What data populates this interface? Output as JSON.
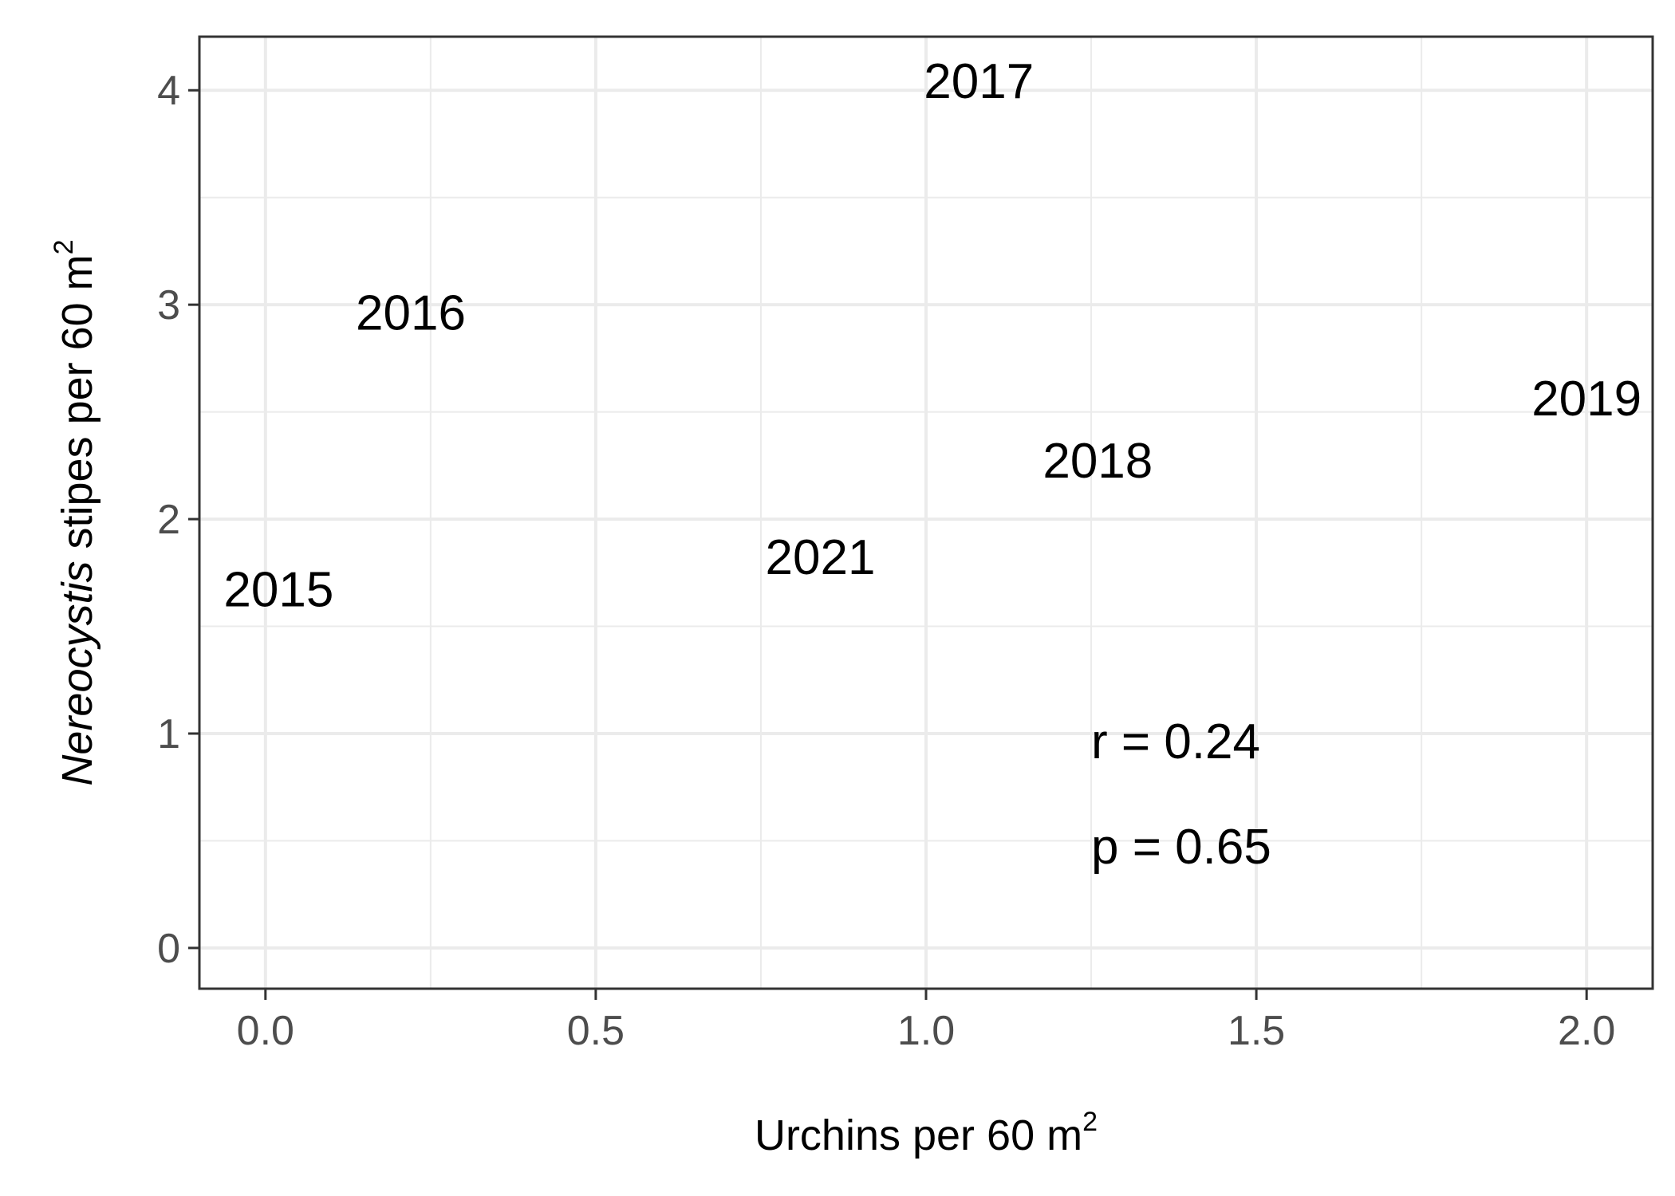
{
  "chart_data": {
    "type": "scatter",
    "xlabel": {
      "main": "Urchins per 60 m",
      "sup": "2"
    },
    "ylabel": {
      "italic": "Nereocystis",
      "main": " stipes per 60 m",
      "sup": "2"
    },
    "xlim": [
      -0.1,
      2.1
    ],
    "ylim": [
      -0.19,
      4.25
    ],
    "xticks": [
      0.0,
      0.5,
      1.0,
      1.5,
      2.0
    ],
    "xtick_labels": [
      "0.0",
      "0.5",
      "1.0",
      "1.5",
      "2.0"
    ],
    "yticks": [
      0,
      1,
      2,
      3,
      4
    ],
    "ytick_labels": [
      "0",
      "1",
      "2",
      "3",
      "4"
    ],
    "grid": true,
    "points": [
      {
        "label": "2015",
        "x": 0.02,
        "y": 1.67
      },
      {
        "label": "2016",
        "x": 0.22,
        "y": 2.96
      },
      {
        "label": "2017",
        "x": 1.08,
        "y": 4.04
      },
      {
        "label": "2018",
        "x": 1.26,
        "y": 2.27
      },
      {
        "label": "2019",
        "x": 2.0,
        "y": 2.56
      },
      {
        "label": "2021",
        "x": 0.84,
        "y": 1.82
      }
    ],
    "annotations": [
      {
        "text": "r = 0.24",
        "x": 1.25,
        "y": 0.96
      },
      {
        "text": "p = 0.65",
        "x": 1.25,
        "y": 0.47
      }
    ],
    "colors": {
      "grid": "#ebebeb",
      "frame": "#333333",
      "tick_text": "#4d4d4d",
      "text": "#000000"
    }
  }
}
